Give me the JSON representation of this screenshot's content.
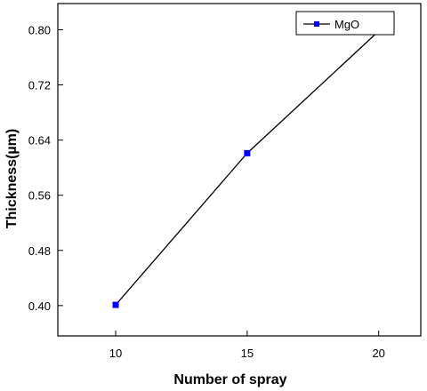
{
  "chart_data": {
    "type": "line",
    "title": "",
    "xlabel": "Number of spray",
    "ylabel": "Thickness(µm)",
    "x": [
      10,
      15,
      20
    ],
    "series": [
      {
        "name": "MgO",
        "values": [
          0.401,
          0.621,
          0.798
        ],
        "color": "#0000ff",
        "line_color": "#000000",
        "marker": "square"
      }
    ],
    "xlim": [
      7.8,
      21.6
    ],
    "ylim": [
      0.356,
      0.838
    ],
    "xticks": [
      10,
      15,
      20
    ],
    "xtick_labels": [
      "10",
      "15",
      "20"
    ],
    "yticks": [
      0.4,
      0.48,
      0.56,
      0.64,
      0.72,
      0.8
    ],
    "ytick_labels": [
      "0.40",
      "0.48",
      "0.56",
      "0.64",
      "0.72",
      "0.80"
    ],
    "legend": {
      "position": "top-right",
      "entries": [
        "MgO"
      ]
    },
    "grid": false
  }
}
